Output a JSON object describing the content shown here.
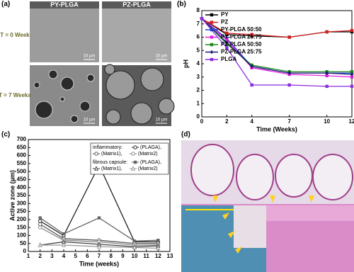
{
  "panel_labels": [
    "(a)",
    "(b)",
    "(c)",
    "(d)"
  ],
  "sem": {
    "columns": [
      "PY-PLGA",
      "PZ-PLGA"
    ],
    "rows": [
      "T = 0 Week",
      "T = 7 Weeks"
    ],
    "scale_bars": [
      "10 µm",
      "10 µm",
      "10 µm",
      "10 µm"
    ]
  },
  "chart_data": [
    {
      "type": "line",
      "ylabel": "pH",
      "xlabel": "Time (Weeks)",
      "xlim": [
        0,
        12
      ],
      "xticks": [
        0,
        2,
        4,
        7,
        10,
        12
      ],
      "ylim": [
        0,
        8
      ],
      "yticks": [
        0,
        1,
        2,
        3,
        4,
        5,
        6,
        7,
        8
      ],
      "legend": "upper left",
      "x": [
        0,
        2,
        4,
        7,
        10,
        12
      ],
      "series": [
        {
          "name": "PY",
          "color": "#000000",
          "marker": "square",
          "values": [
            7.4,
            6.2,
            6.1,
            6.0,
            6.4,
            6.4
          ]
        },
        {
          "name": "PZ",
          "color": "#d62020",
          "marker": "square",
          "values": [
            7.4,
            6.3,
            6.2,
            6.0,
            6.4,
            6.5
          ]
        },
        {
          "name": "PY-PLGA 50:50",
          "color": "#1f3fcf",
          "marker": "square",
          "values": [
            7.4,
            5.9,
            3.8,
            3.3,
            3.3,
            3.3
          ]
        },
        {
          "name": "PY-PLGA 25:75",
          "color": "#e020e0",
          "marker": "square",
          "values": [
            7.4,
            5.8,
            3.7,
            3.2,
            3.1,
            3.0
          ]
        },
        {
          "name": "PZ-PLGA 50:50",
          "color": "#1a8a1a",
          "marker": "square",
          "values": [
            7.4,
            5.5,
            3.9,
            3.4,
            3.4,
            3.4
          ]
        },
        {
          "name": "PZ-PLGA 25:75",
          "color": "#1a1a70",
          "marker": "diamond",
          "values": [
            7.4,
            5.6,
            3.8,
            3.3,
            3.3,
            3.2
          ]
        },
        {
          "name": "PLGA",
          "color": "#8a2be2",
          "marker": "square",
          "values": [
            7.4,
            5.2,
            2.4,
            2.4,
            2.3,
            2.3
          ]
        }
      ]
    },
    {
      "type": "line",
      "ylabel": "Active zone (µm)",
      "xlabel": "Time (weeks)",
      "xlim": [
        1,
        13
      ],
      "xticks": [
        1,
        2,
        3,
        4,
        5,
        6,
        7,
        8,
        9,
        10,
        11,
        12,
        13
      ],
      "ylim": [
        0,
        700
      ],
      "yticks": [
        0,
        50,
        100,
        150,
        200,
        250,
        300,
        350,
        400,
        450,
        500,
        550,
        600,
        650,
        700
      ],
      "legend": "upper right",
      "legend_groups": [
        "inflammatory:",
        "fibrous capsule:"
      ],
      "x": [
        2,
        4,
        7,
        10,
        12
      ],
      "series": [
        {
          "name": "(PLAGA),",
          "color": "#222222",
          "marker": "circle-open",
          "values": [
            190,
            100,
            540,
            60,
            60
          ]
        },
        {
          "name": "(Matrix1),",
          "color": "#555555",
          "marker": "circle-open",
          "values": [
            170,
            80,
            70,
            50,
            50
          ]
        },
        {
          "name": "(Matrix2)",
          "color": "#888888",
          "marker": "circle-open",
          "values": [
            150,
            70,
            60,
            40,
            40
          ]
        },
        {
          "name": "(PLAGA),",
          "color": "#666666",
          "marker": "square",
          "values": [
            210,
            110,
            210,
            65,
            70
          ]
        },
        {
          "name": "(Matrix1),",
          "color": "#444444",
          "marker": "triangle",
          "values": [
            40,
            60,
            45,
            30,
            35
          ]
        },
        {
          "name": "(Matrix2)",
          "color": "#999999",
          "marker": "triangle",
          "values": [
            40,
            40,
            30,
            25,
            20
          ]
        }
      ]
    }
  ]
}
